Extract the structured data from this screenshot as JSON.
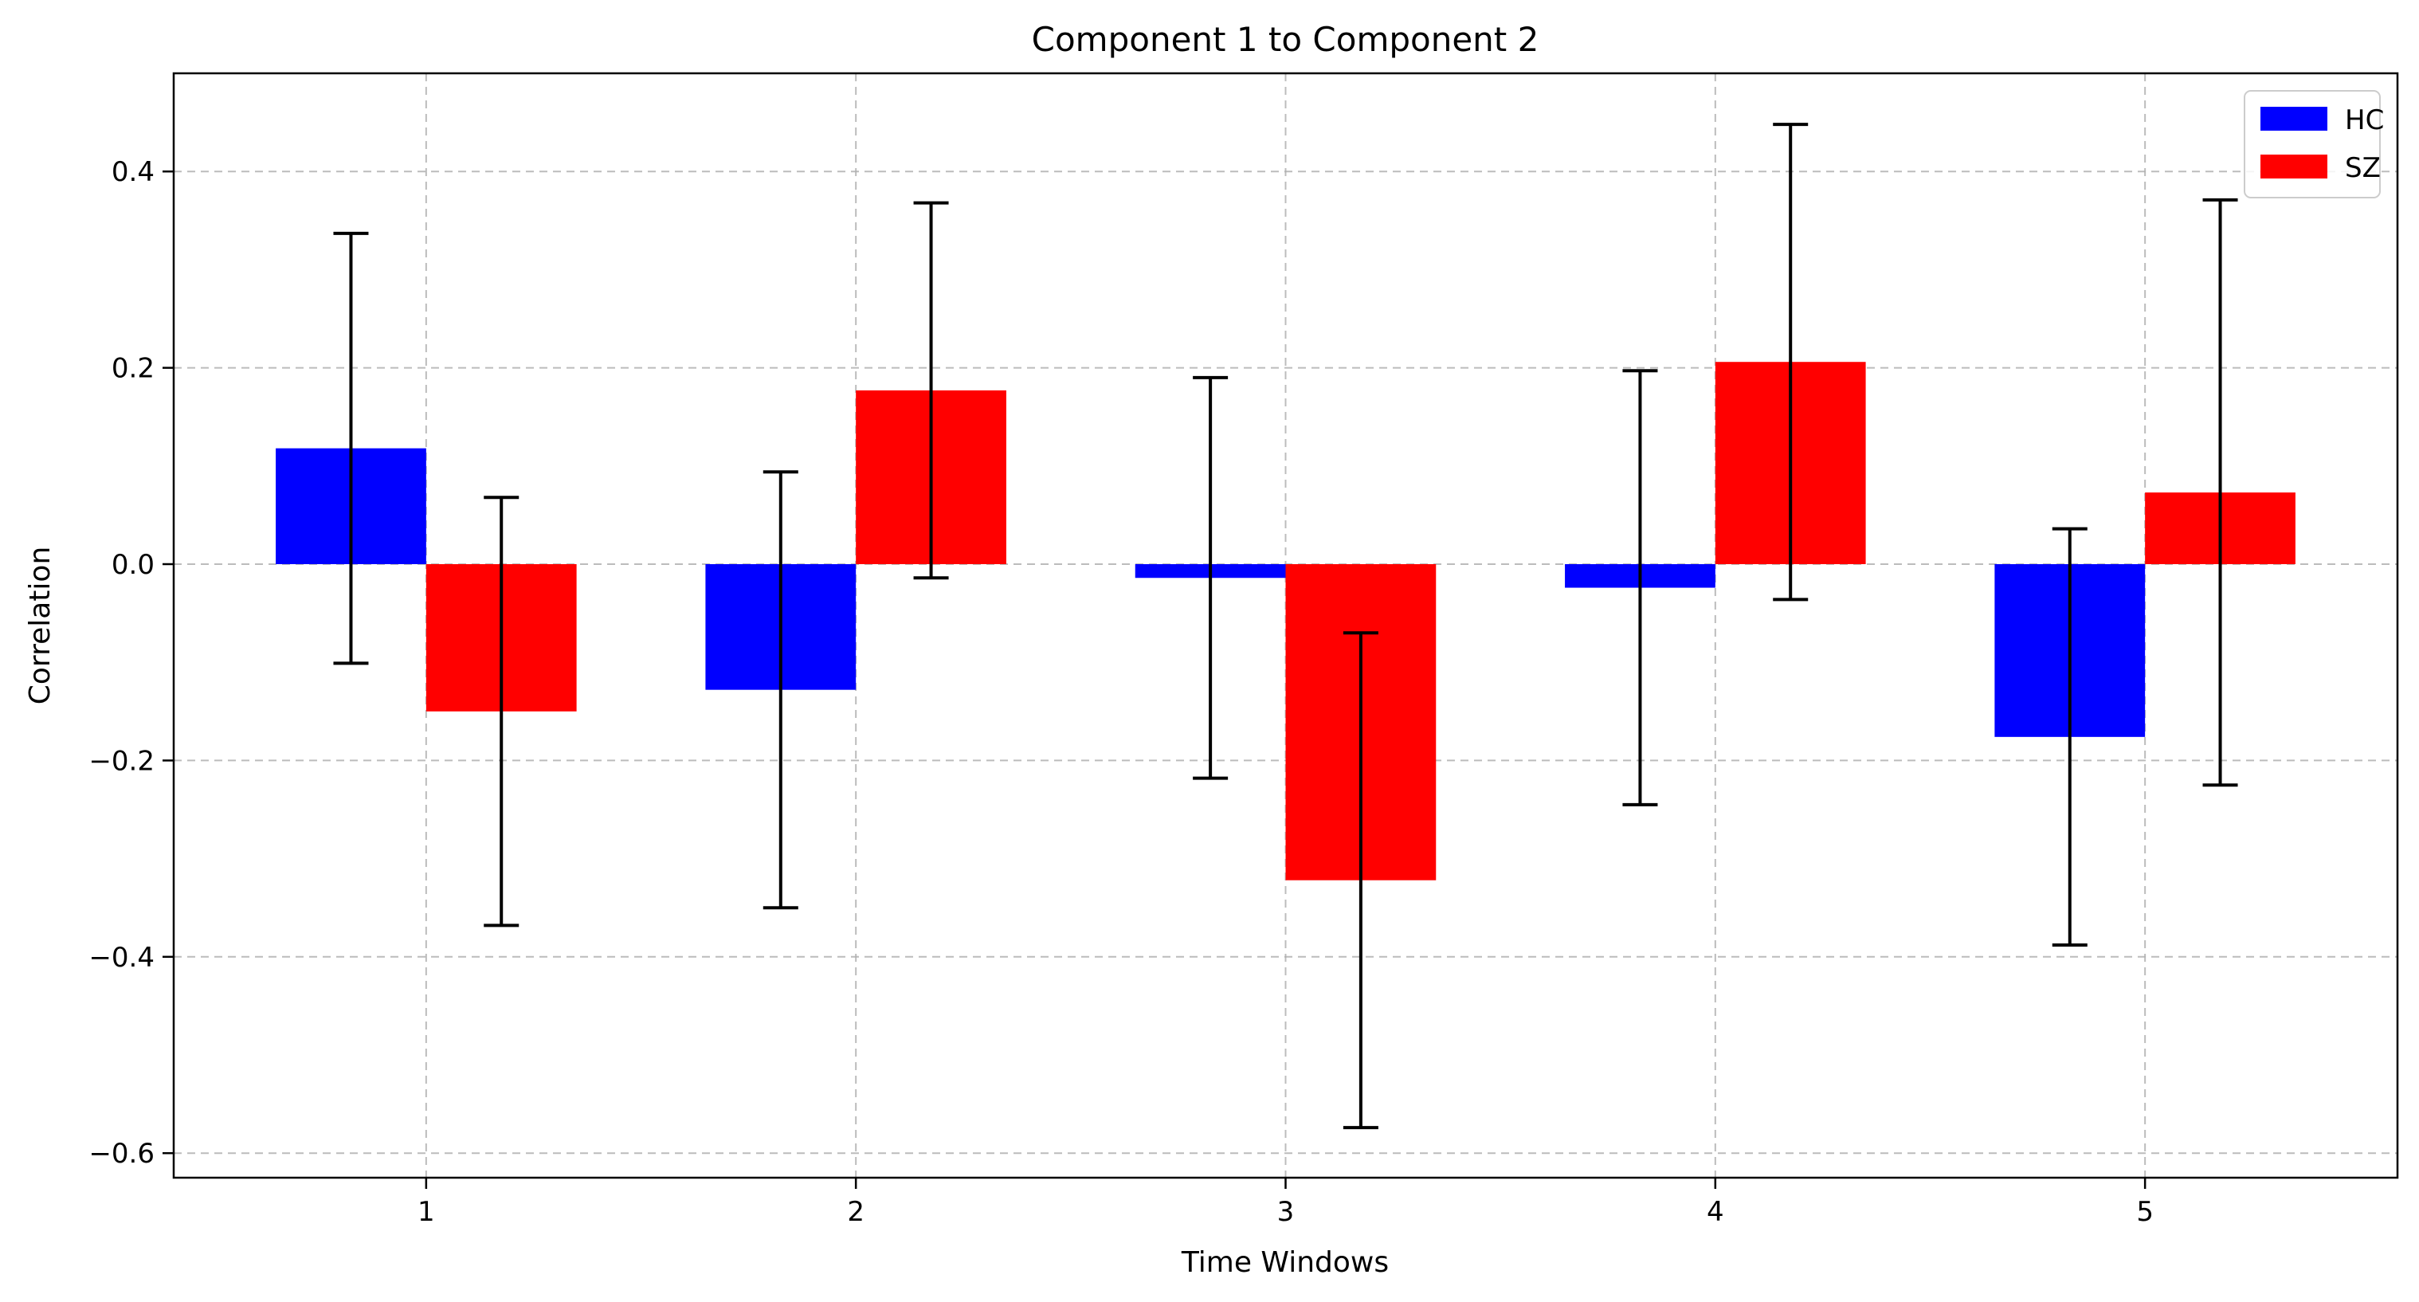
{
  "chart_data": {
    "type": "bar",
    "title": "Component 1 to Component 2",
    "xlabel": "Time Windows",
    "ylabel": "Correlation",
    "categories": [
      "1",
      "2",
      "3",
      "4",
      "5"
    ],
    "series": [
      {
        "name": "HC",
        "color": "#0000ff",
        "values": [
          0.118,
          -0.128,
          -0.014,
          -0.024,
          -0.176
        ],
        "errors": [
          0.219,
          0.222,
          0.204,
          0.221,
          0.212
        ]
      },
      {
        "name": "SZ",
        "color": "#ff0000",
        "values": [
          -0.15,
          0.177,
          -0.322,
          0.206,
          0.073
        ],
        "errors": [
          0.218,
          0.191,
          0.252,
          0.242,
          0.298
        ]
      }
    ],
    "ylim": [
      -0.625,
      0.5
    ],
    "yticks": [
      -0.6,
      -0.4,
      -0.2,
      0.0,
      0.2,
      0.4
    ],
    "ytick_labels": [
      "−0.6",
      "−0.4",
      "−0.2",
      "0.0",
      "0.2",
      "0.4"
    ],
    "xlim": [
      0.4125,
      5.5875
    ],
    "grid": true,
    "legend_position": "top-right"
  }
}
